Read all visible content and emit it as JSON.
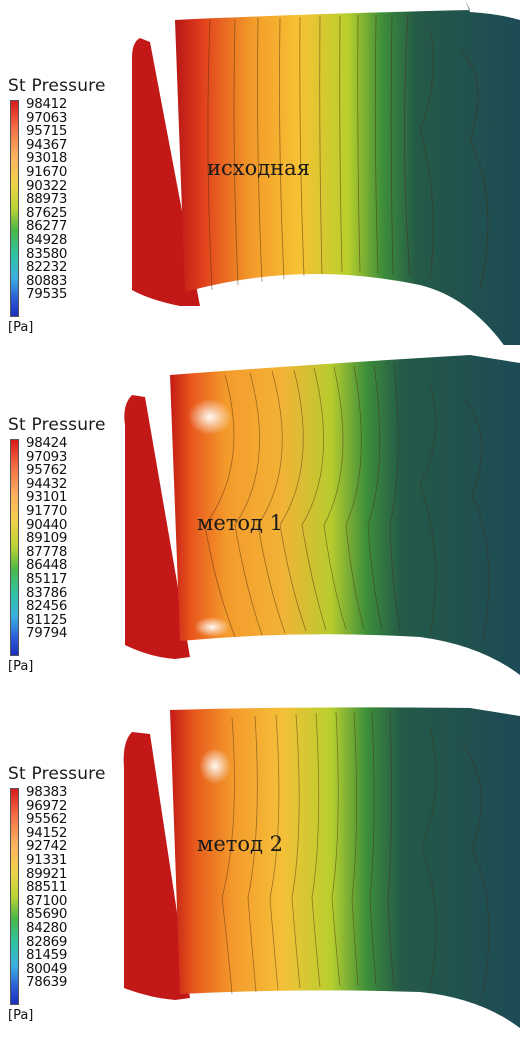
{
  "panels": [
    {
      "legend_title": "St Pressure",
      "ticks": [
        "98412",
        "97063",
        "95715",
        "94367",
        "93018",
        "91670",
        "90322",
        "88973",
        "87625",
        "86277",
        "84928",
        "83580",
        "82232",
        "80883",
        "79535"
      ],
      "unit": "[Pa]",
      "caption": "исходная"
    },
    {
      "legend_title": "St Pressure",
      "ticks": [
        "98424",
        "97093",
        "95762",
        "94432",
        "93101",
        "91770",
        "90440",
        "89109",
        "87778",
        "86448",
        "85117",
        "83786",
        "82456",
        "81125",
        "79794"
      ],
      "unit": "[Pa]",
      "caption": "метод 1"
    },
    {
      "legend_title": "St Pressure",
      "ticks": [
        "98383",
        "96972",
        "95562",
        "94152",
        "92742",
        "91331",
        "89921",
        "88511",
        "87100",
        "85690",
        "84280",
        "82869",
        "81459",
        "80049",
        "78639"
      ],
      "unit": "[Pa]",
      "caption": "метод 2"
    }
  ],
  "colors": {
    "colormap": [
      "#d7191c",
      "#f46d43",
      "#fdae61",
      "#f0d24a",
      "#b8d336",
      "#4cb848",
      "#2fc4a8",
      "#3bb0e0",
      "#2c5bd6",
      "#1a2fbf"
    ]
  }
}
